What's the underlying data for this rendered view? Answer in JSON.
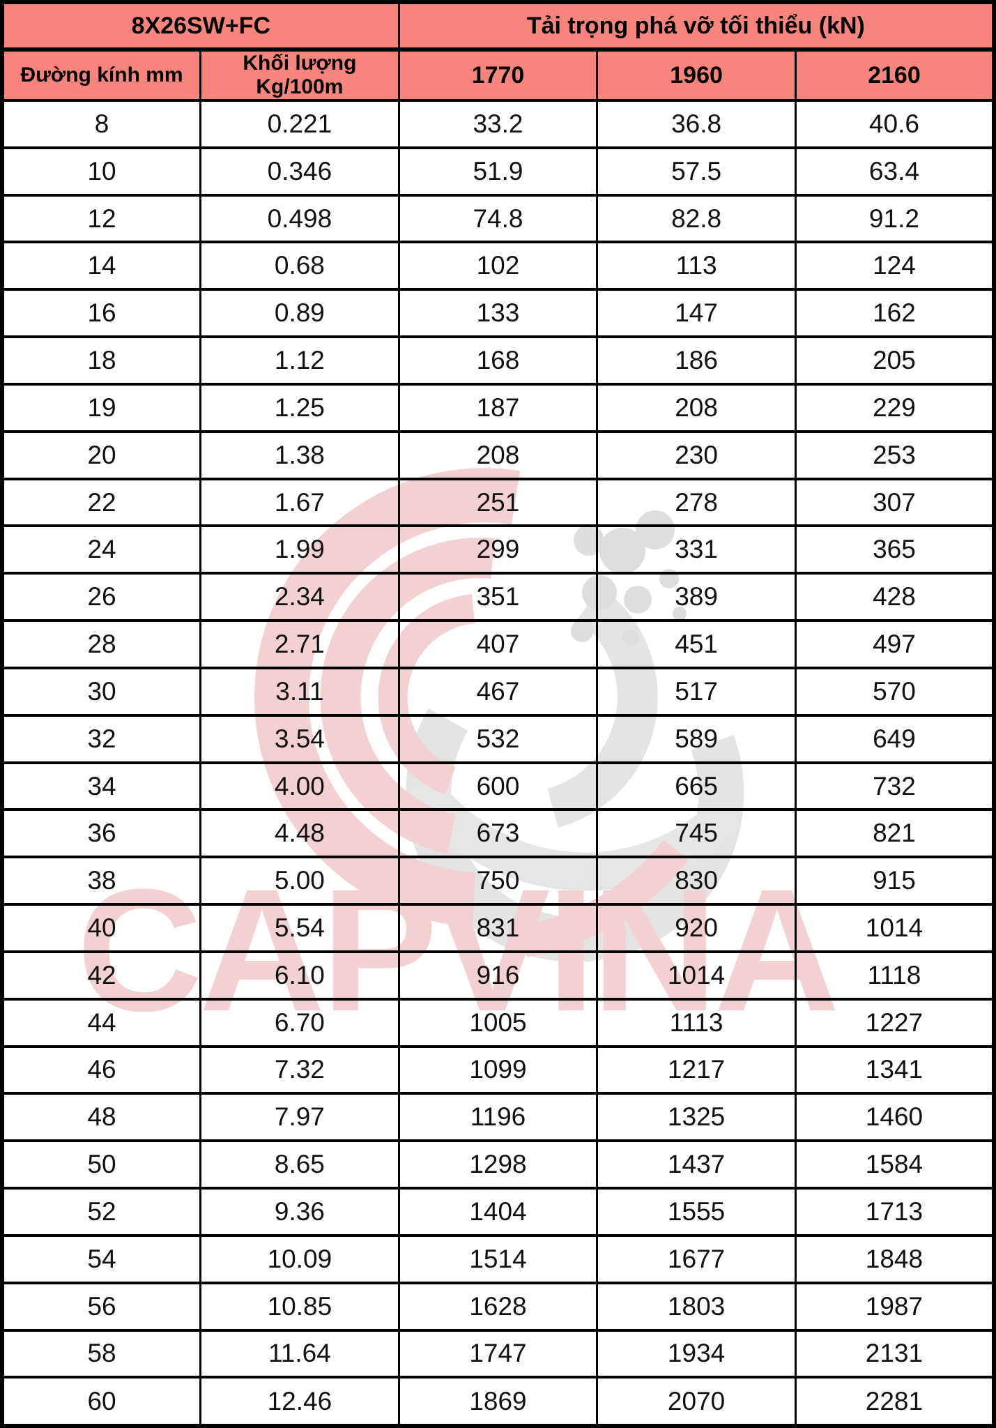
{
  "table": {
    "header_group_left": "8X26SW+FC",
    "header_group_right": "Tải trọng phá vỡ tối thiểu (kN)",
    "columns": [
      "Đường kính mm",
      "Khối lượng Kg/100m",
      "1770",
      "1960",
      "2160"
    ],
    "rows": [
      [
        "8",
        "0.221",
        "33.2",
        "36.8",
        "40.6"
      ],
      [
        "10",
        "0.346",
        "51.9",
        "57.5",
        "63.4"
      ],
      [
        "12",
        "0.498",
        "74.8",
        "82.8",
        "91.2"
      ],
      [
        "14",
        "0.68",
        "102",
        "113",
        "124"
      ],
      [
        "16",
        "0.89",
        "133",
        "147",
        "162"
      ],
      [
        "18",
        "1.12",
        "168",
        "186",
        "205"
      ],
      [
        "19",
        "1.25",
        "187",
        "208",
        "229"
      ],
      [
        "20",
        "1.38",
        "208",
        "230",
        "253"
      ],
      [
        "22",
        "1.67",
        "251",
        "278",
        "307"
      ],
      [
        "24",
        "1.99",
        "299",
        "331",
        "365"
      ],
      [
        "26",
        "2.34",
        "351",
        "389",
        "428"
      ],
      [
        "28",
        "2.71",
        "407",
        "451",
        "497"
      ],
      [
        "30",
        "3.11",
        "467",
        "517",
        "570"
      ],
      [
        "32",
        "3.54",
        "532",
        "589",
        "649"
      ],
      [
        "34",
        "4.00",
        "600",
        "665",
        "732"
      ],
      [
        "36",
        "4.48",
        "673",
        "745",
        "821"
      ],
      [
        "38",
        "5.00",
        "750",
        "830",
        "915"
      ],
      [
        "40",
        "5.54",
        "831",
        "920",
        "1014"
      ],
      [
        "42",
        "6.10",
        "916",
        "1014",
        "1118"
      ],
      [
        "44",
        "6.70",
        "1005",
        "1113",
        "1227"
      ],
      [
        "46",
        "7.32",
        "1099",
        "1217",
        "1341"
      ],
      [
        "48",
        "7.97",
        "1196",
        "1325",
        "1460"
      ],
      [
        "50",
        "8.65",
        "1298",
        "1437",
        "1584"
      ],
      [
        "52",
        "9.36",
        "1404",
        "1555",
        "1713"
      ],
      [
        "54",
        "10.09",
        "1514",
        "1677",
        "1848"
      ],
      [
        "56",
        "10.85",
        "1628",
        "1803",
        "1987"
      ],
      [
        "58",
        "11.64",
        "1747",
        "1934",
        "2131"
      ],
      [
        "60",
        "12.46",
        "1869",
        "2070",
        "2281"
      ]
    ],
    "header_bg": "#f8847e",
    "border_color": "#000000"
  },
  "watermark": {
    "text": "CAPVINA",
    "text_color": "#f3d0d2",
    "logo_pink": "#f3d0d2",
    "logo_gray": "#e4e4e4"
  }
}
